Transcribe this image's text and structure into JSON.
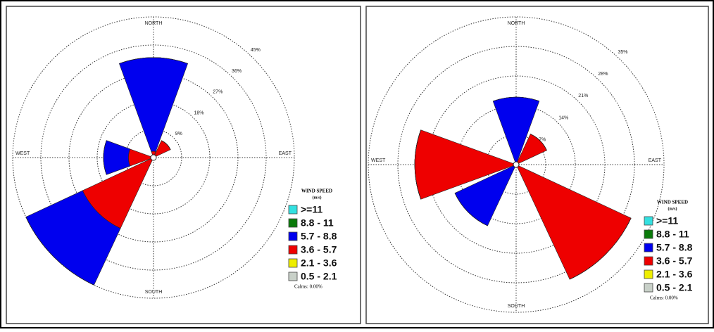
{
  "chart_data": [
    {
      "type": "windrose",
      "x": [
        0,
        45,
        90,
        135,
        180,
        225,
        270,
        315
      ],
      "compass_labels": [
        "NORTH",
        "EAST",
        "SOUTH",
        "WEST"
      ],
      "rlim": [
        0,
        45
      ],
      "rticks": [
        {
          "value": 9,
          "label": "9%"
        },
        {
          "value": 18,
          "label": "18%"
        },
        {
          "value": 27,
          "label": "27%"
        },
        {
          "value": 36,
          "label": "36%"
        },
        {
          "value": 45,
          "label": "45%"
        }
      ],
      "legend_title": "WIND SPEED",
      "legend_unit": "(m/s)",
      "calms_label": "Calms: 0.00%",
      "series": [
        {
          "name": ">=11",
          "color": "#33e0e0",
          "values": [
            0,
            0,
            0,
            0,
            0,
            0,
            0,
            0
          ]
        },
        {
          "name": "8.8 - 11",
          "color": "#0a7a0a",
          "values": [
            0,
            0,
            0,
            0,
            0,
            0,
            0,
            0
          ]
        },
        {
          "name": "5.7 - 8.8",
          "color": "#0000ee",
          "values": [
            30,
            0,
            0,
            0,
            0,
            20,
            8,
            0
          ]
        },
        {
          "name": "3.6 - 5.7",
          "color": "#ee0000",
          "values": [
            2,
            6,
            0,
            0,
            0,
            25,
            8,
            0
          ]
        },
        {
          "name": "2.1 - 3.6",
          "color": "#eeee00",
          "values": [
            0,
            0,
            0,
            0,
            0,
            0,
            0,
            0
          ]
        },
        {
          "name": "0.5 - 2.1",
          "color": "#c8d0c8",
          "values": [
            0,
            0,
            0,
            0,
            0,
            0,
            0,
            0
          ]
        }
      ]
    },
    {
      "type": "windrose",
      "x": [
        0,
        45,
        90,
        135,
        180,
        225,
        270,
        315
      ],
      "compass_labels": [
        "NORTH",
        "EAST",
        "SOUTH",
        "WEST"
      ],
      "rlim": [
        0,
        35
      ],
      "rticks": [
        {
          "value": 7,
          "label": "7%"
        },
        {
          "value": 14,
          "label": "14%"
        },
        {
          "value": 21,
          "label": "21%"
        },
        {
          "value": 28,
          "label": "28%"
        },
        {
          "value": 35,
          "label": "35%"
        }
      ],
      "legend_title": "WIND SPEED",
      "legend_unit": "(m/s)",
      "calms_label": "Calms: 0.00%",
      "series": [
        {
          "name": ">=11",
          "color": "#33e0e0",
          "values": [
            0,
            0,
            0,
            0,
            0,
            0,
            0,
            0
          ]
        },
        {
          "name": "8.8 - 11",
          "color": "#0a7a0a",
          "values": [
            0,
            0,
            0,
            0,
            0,
            0,
            0,
            0
          ]
        },
        {
          "name": "5.7 - 8.8",
          "color": "#0000ee",
          "values": [
            16,
            0,
            0,
            0,
            0,
            16,
            0,
            0
          ]
        },
        {
          "name": "3.6 - 5.7",
          "color": "#ee0000",
          "values": [
            0,
            8,
            0,
            30,
            0,
            0,
            24,
            0
          ]
        },
        {
          "name": "2.1 - 3.6",
          "color": "#eeee00",
          "values": [
            0,
            0,
            0,
            0,
            0,
            0,
            0,
            0
          ]
        },
        {
          "name": "0.5 - 2.1",
          "color": "#c8d0c8",
          "values": [
            0,
            0,
            0,
            0,
            0,
            0,
            0,
            0
          ]
        }
      ]
    }
  ]
}
